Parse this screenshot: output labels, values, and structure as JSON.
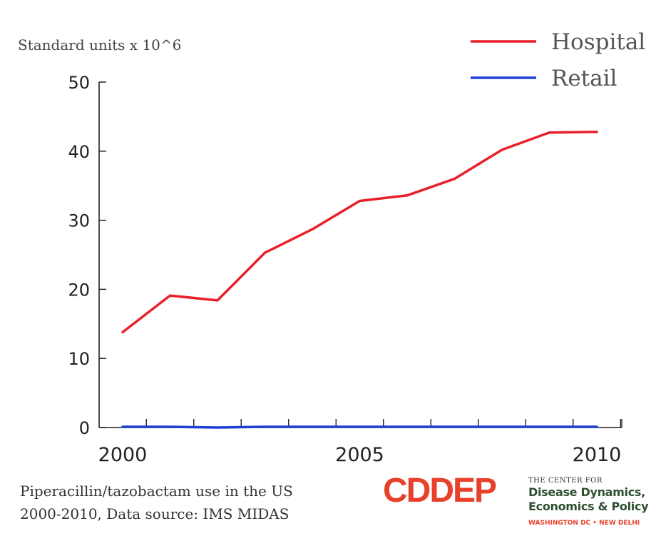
{
  "chart_data": {
    "type": "line",
    "ylabel": "Standard units x 10^6",
    "xlabel": "",
    "x": [
      2000,
      2001,
      2002,
      2003,
      2004,
      2005,
      2006,
      2007,
      2008,
      2009,
      2010
    ],
    "xlim": [
      2000,
      2010.5
    ],
    "ylim": [
      0,
      50
    ],
    "x_ticks": [
      2000,
      2005,
      2010
    ],
    "y_ticks": [
      0,
      10,
      20,
      30,
      40,
      50
    ],
    "grid": false,
    "legend_position": "top-right",
    "series": [
      {
        "name": "Hospital",
        "color": "#e8202a",
        "values": [
          13.8,
          19.1,
          18.4,
          25.3,
          28.7,
          32.8,
          33.6,
          36.0,
          40.2,
          42.7,
          42.8
        ]
      },
      {
        "name": "Retail",
        "color": "#1f3fd6",
        "values": [
          0.1,
          0.1,
          0.0,
          0.1,
          0.1,
          0.1,
          0.1,
          0.1,
          0.1,
          0.1,
          0.1
        ]
      }
    ]
  },
  "caption": {
    "line1": "Piperacillin/tazobactam use in the US",
    "line2": "2000-2010, Data source: IMS MIDAS"
  },
  "logo": {
    "mark": "CDDEP",
    "small": "THE CENTER FOR",
    "line1": "Disease Dynamics,",
    "line2": "Economics & Policy",
    "location": "WASHINGTON DC • NEW DELHI",
    "color_mark": "#e8412b",
    "color_text": "#2f4f2f"
  }
}
